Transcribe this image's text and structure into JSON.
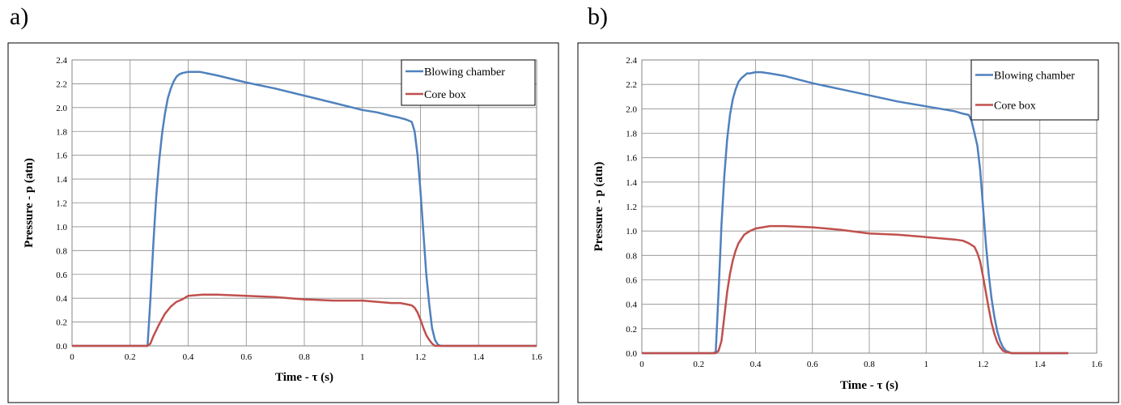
{
  "panels": [
    "a)",
    "b)"
  ],
  "chart_data": [
    {
      "type": "line",
      "panel": "a)",
      "xlabel": "Time - τ (s)",
      "ylabel": "Pressure - p (atn)",
      "xlim": [
        0,
        1.6
      ],
      "ylim": [
        0,
        2.4
      ],
      "xticks": [
        "0",
        "0.2",
        "0.4",
        "0.6",
        "0.8",
        "1",
        "1.2",
        "1.4",
        "1.6"
      ],
      "yticks": [
        "0.0",
        "0.2",
        "0.4",
        "0.6",
        "0.8",
        "1.0",
        "1.2",
        "1.4",
        "1.6",
        "1.8",
        "2.0",
        "2.2",
        "2.4"
      ],
      "grid": true,
      "legend_position": "top-right",
      "series": [
        {
          "name": "Blowing chamber",
          "color": "#4F81BD",
          "x": [
            0,
            0.1,
            0.2,
            0.25,
            0.26,
            0.27,
            0.28,
            0.29,
            0.3,
            0.31,
            0.32,
            0.33,
            0.34,
            0.35,
            0.36,
            0.37,
            0.38,
            0.4,
            0.42,
            0.44,
            0.5,
            0.6,
            0.7,
            0.8,
            0.9,
            1.0,
            1.05,
            1.1,
            1.12,
            1.15,
            1.17,
            1.18,
            1.19,
            1.2,
            1.21,
            1.22,
            1.23,
            1.24,
            1.25,
            1.26,
            1.27,
            1.3,
            1.4,
            1.5,
            1.6
          ],
          "y": [
            0,
            0,
            0,
            0,
            0,
            0.4,
            0.85,
            1.25,
            1.55,
            1.78,
            1.95,
            2.08,
            2.16,
            2.22,
            2.26,
            2.28,
            2.29,
            2.3,
            2.3,
            2.3,
            2.27,
            2.21,
            2.16,
            2.1,
            2.04,
            1.98,
            1.96,
            1.93,
            1.92,
            1.9,
            1.88,
            1.8,
            1.6,
            1.3,
            0.95,
            0.6,
            0.35,
            0.15,
            0.05,
            0.01,
            0,
            0,
            0,
            0,
            0
          ]
        },
        {
          "name": "Core box",
          "color": "#C0504D",
          "x": [
            0,
            0.1,
            0.2,
            0.26,
            0.27,
            0.28,
            0.3,
            0.32,
            0.34,
            0.36,
            0.38,
            0.4,
            0.45,
            0.5,
            0.6,
            0.7,
            0.8,
            0.9,
            1.0,
            1.05,
            1.1,
            1.13,
            1.15,
            1.17,
            1.18,
            1.19,
            1.2,
            1.21,
            1.22,
            1.23,
            1.24,
            1.25,
            1.3,
            1.4,
            1.5,
            1.6
          ],
          "y": [
            0,
            0,
            0,
            0,
            0.02,
            0.08,
            0.18,
            0.27,
            0.33,
            0.37,
            0.39,
            0.42,
            0.43,
            0.43,
            0.42,
            0.41,
            0.39,
            0.38,
            0.38,
            0.37,
            0.36,
            0.36,
            0.35,
            0.34,
            0.32,
            0.28,
            0.22,
            0.15,
            0.09,
            0.05,
            0.02,
            0,
            0,
            0,
            0,
            0
          ]
        }
      ]
    },
    {
      "type": "line",
      "panel": "b)",
      "xlabel": "Time  - τ (s)",
      "ylabel": "Pressure - p (atn)",
      "xlim": [
        0,
        1.6
      ],
      "ylim": [
        0,
        2.4
      ],
      "xticks": [
        "0",
        "0.2",
        "0.4",
        "0.6",
        "0.8",
        "1",
        "1.2",
        "1.4",
        "1.6"
      ],
      "yticks": [
        "0.0",
        "0.2",
        "0.4",
        "0.6",
        "0.8",
        "1.0",
        "1.2",
        "1.4",
        "1.6",
        "1.8",
        "2.0",
        "2.2",
        "2.4"
      ],
      "grid": true,
      "legend_position": "top-right",
      "series": [
        {
          "name": "Blowing chamber",
          "color": "#4F81BD",
          "x": [
            0,
            0.1,
            0.2,
            0.25,
            0.26,
            0.27,
            0.28,
            0.29,
            0.3,
            0.31,
            0.32,
            0.33,
            0.34,
            0.35,
            0.36,
            0.37,
            0.38,
            0.4,
            0.42,
            0.45,
            0.5,
            0.6,
            0.7,
            0.8,
            0.9,
            1.0,
            1.05,
            1.1,
            1.13,
            1.15,
            1.16,
            1.17,
            1.18,
            1.19,
            1.2,
            1.21,
            1.22,
            1.23,
            1.24,
            1.25,
            1.26,
            1.27,
            1.28,
            1.29,
            1.3,
            1.35,
            1.4,
            1.5
          ],
          "y": [
            0,
            0,
            0,
            0,
            0.01,
            0.5,
            1.05,
            1.45,
            1.75,
            1.95,
            2.08,
            2.16,
            2.22,
            2.25,
            2.27,
            2.29,
            2.29,
            2.3,
            2.3,
            2.29,
            2.27,
            2.21,
            2.16,
            2.11,
            2.06,
            2.02,
            2.0,
            1.98,
            1.96,
            1.95,
            1.9,
            1.8,
            1.7,
            1.5,
            1.2,
            0.9,
            0.65,
            0.45,
            0.3,
            0.18,
            0.1,
            0.05,
            0.02,
            0.01,
            0,
            0,
            0,
            0
          ]
        },
        {
          "name": "Core box",
          "color": "#C0504D",
          "x": [
            0,
            0.1,
            0.2,
            0.26,
            0.27,
            0.28,
            0.29,
            0.3,
            0.31,
            0.32,
            0.33,
            0.34,
            0.36,
            0.38,
            0.4,
            0.45,
            0.5,
            0.6,
            0.7,
            0.8,
            0.9,
            1.0,
            1.05,
            1.1,
            1.13,
            1.15,
            1.17,
            1.18,
            1.19,
            1.2,
            1.21,
            1.22,
            1.23,
            1.24,
            1.25,
            1.26,
            1.27,
            1.28,
            1.3,
            1.4,
            1.5
          ],
          "y": [
            0,
            0,
            0,
            0,
            0.02,
            0.1,
            0.3,
            0.5,
            0.65,
            0.76,
            0.84,
            0.9,
            0.97,
            1.0,
            1.02,
            1.04,
            1.04,
            1.03,
            1.01,
            0.98,
            0.97,
            0.95,
            0.94,
            0.93,
            0.92,
            0.9,
            0.87,
            0.82,
            0.75,
            0.63,
            0.5,
            0.37,
            0.25,
            0.16,
            0.09,
            0.05,
            0.02,
            0.01,
            0,
            0,
            0
          ]
        }
      ]
    }
  ]
}
